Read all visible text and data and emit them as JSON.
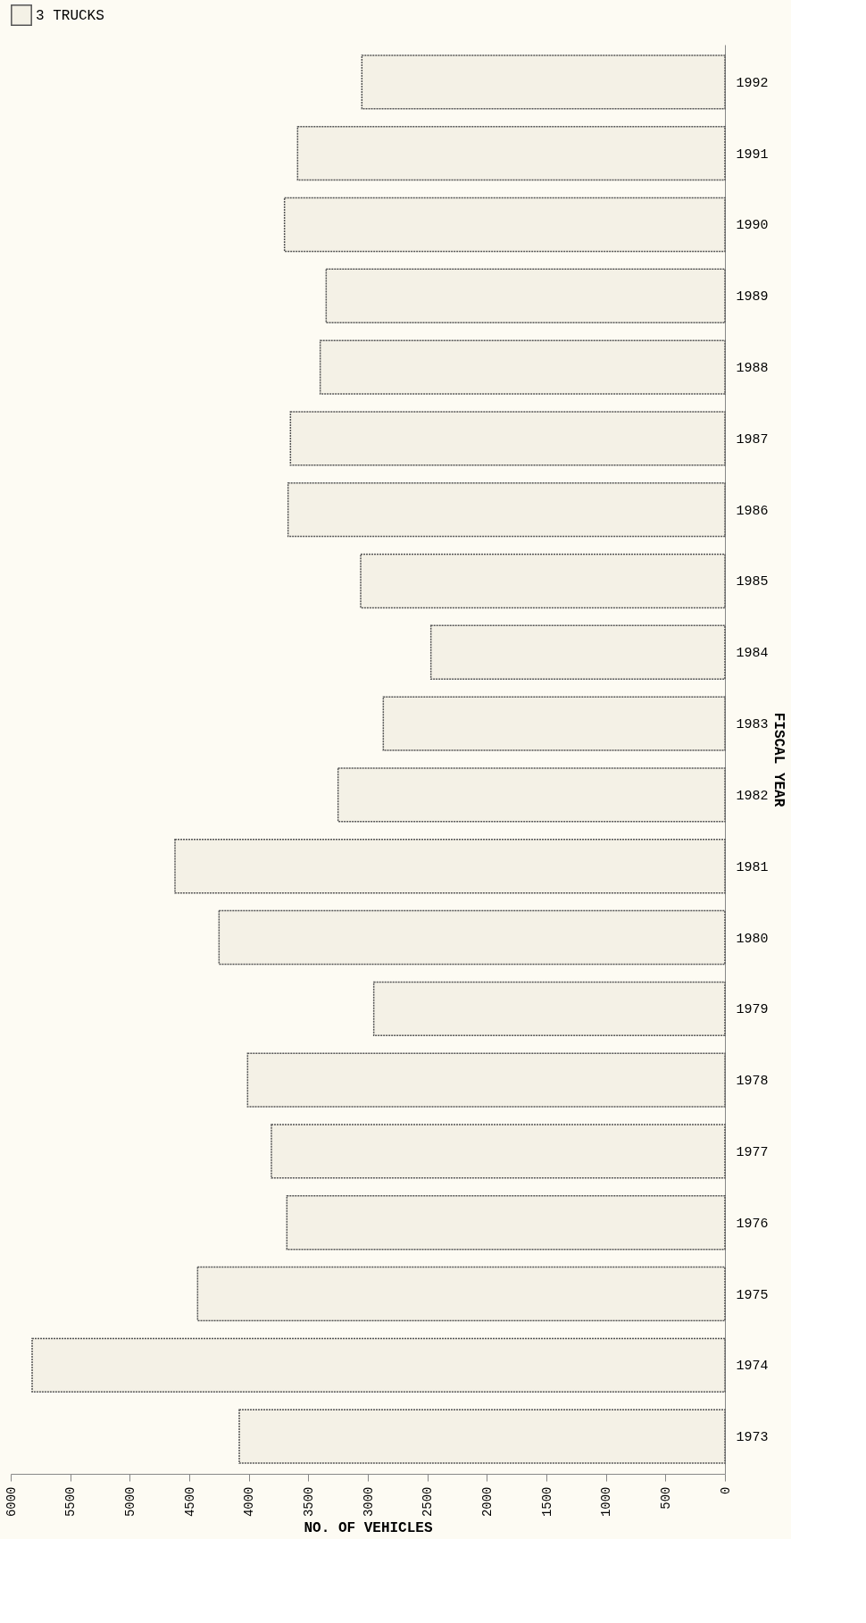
{
  "chart_data": {
    "type": "bar",
    "orientation": "horizontal",
    "xlabel": "NO. OF VEHICLES",
    "ylabel": "FISCAL YEAR",
    "categories": [
      "1992",
      "1991",
      "1990",
      "1989",
      "1988",
      "1987",
      "1986",
      "1985",
      "1984",
      "1983",
      "1982",
      "1981",
      "1980",
      "1979",
      "1978",
      "1977",
      "1976",
      "1975",
      "1974",
      "1973"
    ],
    "series": [
      {
        "name": "3 TRUCKS",
        "color": "#555555",
        "values": [
          3050,
          3590,
          3700,
          3350,
          3400,
          3650,
          3670,
          3060,
          2470,
          2870,
          3250,
          4620,
          4250,
          2950,
          4010,
          3810,
          3680,
          4430,
          5820,
          4080
        ]
      }
    ],
    "xlim": [
      6000,
      0
    ],
    "xticks": [
      6000,
      5500,
      5000,
      4500,
      4000,
      3500,
      3000,
      2500,
      2000,
      1500,
      1000,
      500,
      0
    ],
    "grid": false,
    "legend": "top left"
  }
}
